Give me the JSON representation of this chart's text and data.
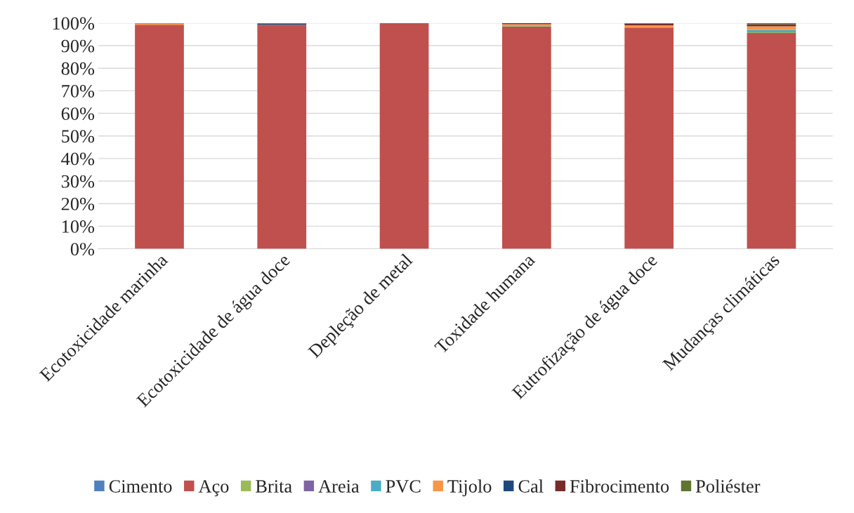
{
  "chart_data": {
    "type": "bar",
    "stacked": true,
    "categories": [
      "Ecotoxicidade marinha",
      "Ecotoxicidade de água doce",
      "Depleção de metal",
      "Toxidade humana",
      "Eutrofização de água doce",
      "Mudanças climáticas"
    ],
    "series": [
      {
        "name": "Cimento",
        "color": "#4f81bd",
        "values": [
          0,
          0,
          0,
          0,
          0,
          null
        ]
      },
      {
        "name": "Aço",
        "color": "#c0504d",
        "values": [
          99.3,
          99.3,
          100,
          98.5,
          98.0,
          95.6
        ]
      },
      {
        "name": "Brita",
        "color": "#9bbb59",
        "values": [
          0,
          0,
          null,
          0.3,
          0,
          0.3
        ]
      },
      {
        "name": "Areia",
        "color": "#8064a2",
        "values": [
          0,
          0,
          0,
          0,
          0,
          0
        ]
      },
      {
        "name": "PVC",
        "color": "#4bacc6",
        "values": [
          0,
          0,
          0,
          0.2,
          0,
          1.0
        ]
      },
      {
        "name": "Tijolo",
        "color": "#f79646",
        "values": [
          0.5,
          0,
          0,
          0.5,
          1.0,
          1.7
        ]
      },
      {
        "name": "Cal",
        "color": "#1f497d",
        "values": [
          0,
          0.5,
          0,
          null,
          0,
          0
        ]
      },
      {
        "name": "Fibrocimento",
        "color": "#772c2a",
        "values": [
          0,
          0,
          0,
          0.5,
          0.8,
          0.9
        ]
      },
      {
        "name": "Poliéster",
        "color": "#5f7530",
        "values": [
          0.2,
          0.2,
          0,
          0,
          0.2,
          0.5
        ]
      }
    ],
    "ylim": [
      0,
      100
    ],
    "yticks": [
      {
        "value": 0,
        "label": "0%"
      },
      {
        "value": 10,
        "label": "10%"
      },
      {
        "value": 20,
        "label": "20%"
      },
      {
        "value": 30,
        "label": "30%"
      },
      {
        "value": 40,
        "label": "40%"
      },
      {
        "value": 50,
        "label": "50%"
      },
      {
        "value": 60,
        "label": "60%"
      },
      {
        "value": 70,
        "label": "70%"
      },
      {
        "value": 80,
        "label": "80%"
      },
      {
        "value": 90,
        "label": "90%"
      },
      {
        "value": 100,
        "label": "100%"
      }
    ],
    "grid": "y",
    "legend": "bottom"
  }
}
